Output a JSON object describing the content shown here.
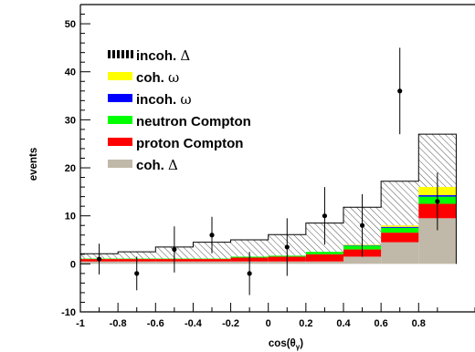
{
  "chart_data": {
    "type": "bar",
    "xlabel": "cos(θ",
    "xlabel_sub": "γ",
    "xlabel_close": ")",
    "ylabel": "events",
    "xlim": [
      -1.0,
      1.1
    ],
    "ylim": [
      -10,
      54
    ],
    "x_ticks": [
      -1,
      -0.8,
      -0.6,
      -0.4,
      -0.2,
      0,
      0.2,
      0.4,
      0.6,
      0.8
    ],
    "x_tick_labels": [
      "-1",
      "-0.8",
      "-0.6",
      "-0.4",
      "-0.2",
      "0",
      "0.2",
      "0.4",
      "0.6",
      "0.8"
    ],
    "y_ticks": [
      -10,
      0,
      10,
      20,
      30,
      40,
      50
    ],
    "y_tick_labels": [
      "-10",
      "0",
      "10",
      "20",
      "30",
      "40",
      "50"
    ],
    "bin_edges": [
      -1.0,
      -0.8,
      -0.6,
      -0.4,
      -0.2,
      0.0,
      0.2,
      0.4,
      0.6,
      0.8,
      1.0
    ],
    "legend": [
      {
        "key": "incoh_delta",
        "text": "incoh. ",
        "symbol": "Δ",
        "style": "hatch"
      },
      {
        "key": "coh_omega",
        "text": "coh. ",
        "symbol": "ω",
        "color": "#ffff00"
      },
      {
        "key": "incoh_omega",
        "text": "incoh. ",
        "symbol": "ω",
        "color": "#0000ff"
      },
      {
        "key": "neutron_compton",
        "text": "neutron Compton",
        "symbol": "",
        "color": "#00ff00"
      },
      {
        "key": "proton_compton",
        "text": "proton Compton",
        "symbol": "",
        "color": "#ff0000"
      },
      {
        "key": "coh_delta",
        "text": "coh. ",
        "symbol": "Δ",
        "color": "#c0b8a8"
      }
    ],
    "stack_order": [
      "coh_delta",
      "proton_compton",
      "neutron_compton",
      "incoh_omega",
      "coh_omega",
      "incoh_delta"
    ],
    "series": [
      {
        "key": "coh_delta",
        "color": "#c0b8a8",
        "values": [
          0.5,
          0.5,
          0.5,
          0.5,
          0.5,
          0.5,
          0.5,
          1.5,
          4.5,
          9.5
        ]
      },
      {
        "key": "proton_compton",
        "color": "#ff0000",
        "values": [
          0.5,
          0.5,
          0.5,
          0.5,
          0.8,
          1.0,
          1.5,
          1.5,
          2.0,
          3.0
        ]
      },
      {
        "key": "neutron_compton",
        "color": "#00ff00",
        "values": [
          0.1,
          0.1,
          0.1,
          0.1,
          0.2,
          0.2,
          0.5,
          0.8,
          1.0,
          1.5
        ]
      },
      {
        "key": "incoh_omega",
        "color": "#0000ff",
        "values": [
          0.0,
          0.0,
          0.0,
          0.0,
          0.0,
          0.0,
          0.0,
          0.1,
          0.2,
          0.3
        ]
      },
      {
        "key": "coh_omega",
        "color": "#ffff00",
        "values": [
          0.0,
          0.0,
          0.0,
          0.0,
          0.0,
          0.0,
          0.0,
          0.1,
          0.3,
          1.7
        ]
      },
      {
        "key": "incoh_delta",
        "color": "hatch",
        "values": [
          1.0,
          1.4,
          2.4,
          3.4,
          3.5,
          4.4,
          6.0,
          7.8,
          9.2,
          11.0
        ]
      }
    ],
    "data_points": [
      {
        "x": -0.9,
        "y": 1.0,
        "err": 3.2
      },
      {
        "x": -0.7,
        "y": -2.0,
        "err": 3.5
      },
      {
        "x": -0.5,
        "y": 3.0,
        "err": 4.8
      },
      {
        "x": -0.3,
        "y": 6.0,
        "err": 3.8
      },
      {
        "x": -0.1,
        "y": -2.0,
        "err": 4.5
      },
      {
        "x": 0.1,
        "y": 3.5,
        "err": 6.0
      },
      {
        "x": 0.3,
        "y": 10.0,
        "err": 6.0
      },
      {
        "x": 0.5,
        "y": 8.0,
        "err": 6.5
      },
      {
        "x": 0.7,
        "y": 36.0,
        "err": 9.0
      },
      {
        "x": 0.9,
        "y": 13.0,
        "err": 6.0
      }
    ]
  }
}
